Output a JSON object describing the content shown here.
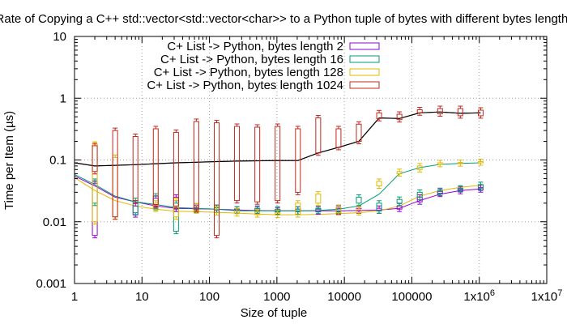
{
  "chart_data": {
    "type": "line",
    "title": "Rate of Copying a C++ std::vector<std::vector<char>> to a Python tuple of bytes with different bytes length.",
    "xlabel": "Size of tuple",
    "ylabel": "Time per Item (µs)",
    "xscale": "log",
    "yscale": "log",
    "xlim": [
      1,
      10000000
    ],
    "ylim": [
      0.001,
      10
    ],
    "grid": true,
    "legend_position": "top-center",
    "x_ticks": [
      {
        "value": 1,
        "label": "1"
      },
      {
        "value": 10,
        "label": "10"
      },
      {
        "value": 100,
        "label": "100"
      },
      {
        "value": 1000,
        "label": "1000"
      },
      {
        "value": 10000,
        "label": "10000"
      },
      {
        "value": 100000,
        "label": "100000"
      },
      {
        "value": 1000000,
        "label": "1x10",
        "exp": "6"
      },
      {
        "value": 10000000,
        "label": "1x10",
        "exp": "7"
      }
    ],
    "y_ticks": [
      {
        "value": 0.001,
        "label": "0.001"
      },
      {
        "value": 0.01,
        "label": "0.01"
      },
      {
        "value": 0.1,
        "label": "0.1"
      },
      {
        "value": 1,
        "label": "1"
      },
      {
        "value": 10,
        "label": "10"
      }
    ],
    "x": [
      1,
      2,
      4,
      8,
      16,
      32,
      64,
      128,
      256,
      512,
      1024,
      2048,
      4096,
      8192,
      16384,
      32768,
      65536,
      131072,
      262144,
      524288,
      1048576
    ],
    "series": [
      {
        "name": "C+ List -> Python, bytes length 2",
        "color": "#9400d3",
        "line": [
          0.055,
          0.038,
          0.025,
          0.021,
          0.018,
          0.0165,
          0.0162,
          0.016,
          0.0155,
          0.0152,
          0.015,
          0.015,
          0.015,
          0.015,
          0.0152,
          0.0155,
          0.0165,
          0.022,
          0.028,
          0.032,
          0.034
        ],
        "boxes": [
          null,
          {
            "x": 2,
            "lo": 0.006,
            "hi": 0.042
          },
          null,
          {
            "x": 8,
            "lo": 0.013,
            "hi": 0.018
          },
          {
            "x": 16,
            "lo": 0.018,
            "hi": 0.024
          },
          {
            "x": 32,
            "lo": 0.016,
            "hi": 0.025
          },
          {
            "x": 64,
            "lo": 0.0155,
            "hi": 0.017
          },
          {
            "x": 128,
            "lo": 0.0155,
            "hi": 0.017
          },
          {
            "x": 256,
            "lo": 0.015,
            "hi": 0.016
          },
          {
            "x": 512,
            "lo": 0.015,
            "hi": 0.016
          },
          {
            "x": 1024,
            "lo": 0.0145,
            "hi": 0.0155
          },
          {
            "x": 2048,
            "lo": 0.0145,
            "hi": 0.016
          },
          {
            "x": 4096,
            "lo": 0.0145,
            "hi": 0.016
          },
          {
            "x": 8192,
            "lo": 0.0145,
            "hi": 0.0165
          },
          {
            "x": 16384,
            "lo": 0.015,
            "hi": 0.0165
          },
          {
            "x": 32768,
            "lo": 0.015,
            "hi": 0.0165
          },
          {
            "x": 65536,
            "lo": 0.016,
            "hi": 0.018
          },
          {
            "x": 131072,
            "lo": 0.021,
            "hi": 0.025
          },
          {
            "x": 262144,
            "lo": 0.028,
            "hi": 0.031
          },
          {
            "x": 524288,
            "lo": 0.031,
            "hi": 0.034
          },
          {
            "x": 1048576,
            "lo": 0.033,
            "hi": 0.036
          }
        ]
      },
      {
        "name": "C+ List -> Python, bytes length 16",
        "color": "#009e73",
        "line": [
          0.058,
          0.04,
          0.026,
          0.021,
          0.019,
          0.017,
          0.0165,
          0.016,
          0.015,
          0.015,
          0.015,
          0.015,
          0.0152,
          0.016,
          0.018,
          0.028,
          0.06,
          0.075,
          0.085,
          0.088,
          0.09
        ],
        "boxes": [
          null,
          {
            "x": 2,
            "lo": 0.02,
            "hi": 0.045
          },
          null,
          {
            "x": 8,
            "lo": 0.014,
            "hi": 0.022
          },
          {
            "x": 16,
            "lo": 0.017,
            "hi": 0.026
          },
          {
            "x": 32,
            "lo": 0.007,
            "hi": 0.02
          },
          {
            "x": 64,
            "lo": 0.0155,
            "hi": 0.018
          },
          {
            "x": 128,
            "lo": 0.0155,
            "hi": 0.017
          },
          {
            "x": 256,
            "lo": 0.015,
            "hi": 0.016
          },
          {
            "x": 512,
            "lo": 0.015,
            "hi": 0.0165
          },
          {
            "x": 1024,
            "lo": 0.0145,
            "hi": 0.016
          },
          {
            "x": 2048,
            "lo": 0.0145,
            "hi": 0.016
          },
          {
            "x": 4096,
            "lo": 0.015,
            "hi": 0.0165
          },
          {
            "x": 8192,
            "lo": 0.015,
            "hi": 0.017
          },
          {
            "x": 16384,
            "lo": 0.02,
            "hi": 0.025
          },
          {
            "x": 32768,
            "lo": 0.015,
            "hi": 0.02
          },
          {
            "x": 65536,
            "lo": 0.02,
            "hi": 0.023
          },
          {
            "x": 131072,
            "lo": 0.025,
            "hi": 0.03
          },
          {
            "x": 262144,
            "lo": 0.029,
            "hi": 0.032
          },
          {
            "x": 524288,
            "lo": 0.033,
            "hi": 0.035
          },
          {
            "x": 1048576,
            "lo": 0.035,
            "hi": 0.04
          }
        ]
      },
      {
        "name": "C+ List -> Python, bytes length 128",
        "color": "#e6b800",
        "line": [
          0.052,
          0.032,
          0.022,
          0.018,
          0.016,
          0.0148,
          0.0145,
          0.0142,
          0.0138,
          0.0133,
          0.013,
          0.013,
          0.0132,
          0.0135,
          0.014,
          0.015,
          0.018,
          0.026,
          0.032,
          0.036,
          0.039
        ],
        "boxes": [
          null,
          {
            "x": 2,
            "lo": 0.01,
            "hi": 0.18
          },
          {
            "x": 4,
            "lo": 0.012,
            "hi": 0.11
          },
          null,
          {
            "x": 16,
            "lo": 0.016,
            "hi": 0.02
          },
          {
            "x": 32,
            "lo": 0.012,
            "hi": 0.022
          },
          {
            "x": 64,
            "lo": 0.015,
            "hi": 0.018
          },
          {
            "x": 128,
            "lo": 0.014,
            "hi": 0.016
          },
          {
            "x": 256,
            "lo": 0.0135,
            "hi": 0.015
          },
          {
            "x": 512,
            "lo": 0.013,
            "hi": 0.0145
          },
          {
            "x": 1024,
            "lo": 0.0128,
            "hi": 0.014
          },
          {
            "x": 2048,
            "lo": 0.013,
            "hi": 0.02
          },
          {
            "x": 4096,
            "lo": 0.02,
            "hi": 0.028
          },
          {
            "x": 8192,
            "lo": 0.014,
            "hi": 0.017
          },
          {
            "x": 16384,
            "lo": 0.014,
            "hi": 0.016
          },
          {
            "x": 32768,
            "lo": 0.038,
            "hi": 0.045
          },
          {
            "x": 65536,
            "lo": 0.06,
            "hi": 0.065
          },
          {
            "x": 131072,
            "lo": 0.07,
            "hi": 0.08
          },
          {
            "x": 262144,
            "lo": 0.085,
            "hi": 0.09
          },
          {
            "x": 524288,
            "lo": 0.087,
            "hi": 0.091
          },
          {
            "x": 1048576,
            "lo": 0.09,
            "hi": 0.094
          }
        ]
      },
      {
        "name": "C+ List -> Python, bytes length 1024",
        "color": "#c0281e",
        "line": [
          0.09,
          0.08,
          0.082,
          0.084,
          0.087,
          0.09,
          0.092,
          0.094,
          0.096,
          0.097,
          0.098,
          0.098,
          0.13,
          0.16,
          0.2,
          0.48,
          0.47,
          0.58,
          0.6,
          0.57,
          0.58
        ],
        "boxes": [
          null,
          {
            "x": 2,
            "lo": 0.065,
            "hi": 0.17
          },
          {
            "x": 4,
            "lo": 0.012,
            "hi": 0.3
          },
          {
            "x": 8,
            "lo": 0.022,
            "hi": 0.24
          },
          {
            "x": 16,
            "lo": 0.019,
            "hi": 0.32
          },
          {
            "x": 32,
            "lo": 0.018,
            "hi": 0.28
          },
          {
            "x": 64,
            "lo": 0.016,
            "hi": 0.42
          },
          {
            "x": 128,
            "lo": 0.006,
            "hi": 0.4
          },
          {
            "x": 256,
            "lo": 0.022,
            "hi": 0.35
          },
          {
            "x": 512,
            "lo": 0.021,
            "hi": 0.34
          },
          {
            "x": 1024,
            "lo": 0.022,
            "hi": 0.35
          },
          {
            "x": 2048,
            "lo": 0.03,
            "hi": 0.32
          },
          {
            "x": 4096,
            "lo": 0.13,
            "hi": 0.48
          },
          {
            "x": 8192,
            "lo": 0.16,
            "hi": 0.32
          },
          {
            "x": 16384,
            "lo": 0.2,
            "hi": 0.38
          },
          {
            "x": 32768,
            "lo": 0.47,
            "hi": 0.58
          },
          {
            "x": 65536,
            "lo": 0.45,
            "hi": 0.55
          },
          {
            "x": 131072,
            "lo": 0.58,
            "hi": 0.65
          },
          {
            "x": 262144,
            "lo": 0.56,
            "hi": 0.68
          },
          {
            "x": 524288,
            "lo": 0.52,
            "hi": 0.68
          },
          {
            "x": 1048576,
            "lo": 0.52,
            "hi": 0.64
          }
        ]
      }
    ],
    "median_line": {
      "color": "#000000",
      "values": [
        0.09,
        0.08,
        0.082,
        0.084,
        0.087,
        0.09,
        0.092,
        0.094,
        0.096,
        0.097,
        0.098,
        0.098,
        0.13,
        0.16,
        0.2,
        0.48,
        0.47,
        0.58,
        0.6,
        0.57,
        0.58
      ]
    }
  }
}
